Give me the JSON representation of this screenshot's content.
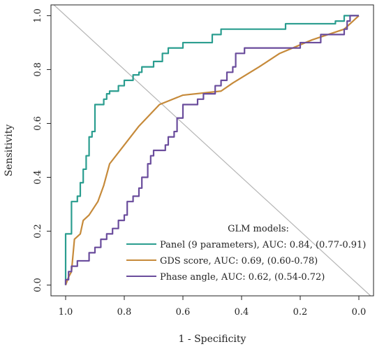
{
  "chart_data": {
    "type": "line",
    "xlabel": "1 - Specificity",
    "ylabel": "Sensitivity",
    "xlim": [
      1.05,
      -0.05
    ],
    "ylim": [
      -0.04,
      1.04
    ],
    "x_ticks": [
      1.0,
      0.8,
      0.6,
      0.4,
      0.2,
      0.0
    ],
    "x_tick_labels": [
      "1.0",
      "0.8",
      "0.6",
      "0.4",
      "0.2",
      "0.0"
    ],
    "y_ticks": [
      0.0,
      0.2,
      0.4,
      0.6,
      0.8,
      1.0
    ],
    "y_tick_labels": [
      "0.0",
      "0.2",
      "0.4",
      "0.6",
      "0.8",
      "1.0"
    ],
    "grid": false,
    "reference_line": true,
    "legend": {
      "title": "GLM models:",
      "placement": "bottom-right"
    },
    "series": [
      {
        "name": "Panel (9 parameters), AUC: 0.84, (0.77-0.91)",
        "color": "#2a9d8f",
        "points": [
          [
            1.0,
            0.0
          ],
          [
            1.0,
            0.19
          ],
          [
            0.98,
            0.19
          ],
          [
            0.98,
            0.31
          ],
          [
            0.96,
            0.31
          ],
          [
            0.96,
            0.33
          ],
          [
            0.95,
            0.33
          ],
          [
            0.95,
            0.38
          ],
          [
            0.94,
            0.38
          ],
          [
            0.94,
            0.43
          ],
          [
            0.93,
            0.43
          ],
          [
            0.93,
            0.48
          ],
          [
            0.92,
            0.48
          ],
          [
            0.92,
            0.55
          ],
          [
            0.91,
            0.55
          ],
          [
            0.91,
            0.57
          ],
          [
            0.9,
            0.57
          ],
          [
            0.9,
            0.67
          ],
          [
            0.87,
            0.67
          ],
          [
            0.87,
            0.69
          ],
          [
            0.86,
            0.69
          ],
          [
            0.86,
            0.71
          ],
          [
            0.85,
            0.71
          ],
          [
            0.85,
            0.72
          ],
          [
            0.82,
            0.72
          ],
          [
            0.82,
            0.74
          ],
          [
            0.8,
            0.74
          ],
          [
            0.8,
            0.76
          ],
          [
            0.77,
            0.76
          ],
          [
            0.77,
            0.78
          ],
          [
            0.75,
            0.78
          ],
          [
            0.75,
            0.79
          ],
          [
            0.74,
            0.79
          ],
          [
            0.74,
            0.81
          ],
          [
            0.7,
            0.81
          ],
          [
            0.7,
            0.83
          ],
          [
            0.67,
            0.83
          ],
          [
            0.67,
            0.86
          ],
          [
            0.65,
            0.86
          ],
          [
            0.65,
            0.88
          ],
          [
            0.6,
            0.88
          ],
          [
            0.6,
            0.9
          ],
          [
            0.5,
            0.9
          ],
          [
            0.5,
            0.93
          ],
          [
            0.47,
            0.93
          ],
          [
            0.47,
            0.95
          ],
          [
            0.25,
            0.95
          ],
          [
            0.25,
            0.97
          ],
          [
            0.08,
            0.97
          ],
          [
            0.08,
            0.98
          ],
          [
            0.05,
            0.98
          ],
          [
            0.05,
            1.0
          ],
          [
            0.0,
            1.0
          ]
        ]
      },
      {
        "name": "GDS score, AUC: 0.69, (0.60-0.78)",
        "color": "#c68a3a",
        "points": [
          [
            1.0,
            0.0
          ],
          [
            0.99,
            0.03
          ],
          [
            0.98,
            0.05
          ],
          [
            0.97,
            0.17
          ],
          [
            0.95,
            0.19
          ],
          [
            0.94,
            0.24
          ],
          [
            0.92,
            0.26
          ],
          [
            0.89,
            0.31
          ],
          [
            0.87,
            0.37
          ],
          [
            0.85,
            0.45
          ],
          [
            0.8,
            0.52
          ],
          [
            0.75,
            0.59
          ],
          [
            0.68,
            0.67
          ],
          [
            0.6,
            0.705
          ],
          [
            0.47,
            0.72
          ],
          [
            0.43,
            0.75
          ],
          [
            0.34,
            0.81
          ],
          [
            0.27,
            0.86
          ],
          [
            0.16,
            0.91
          ],
          [
            0.05,
            0.95
          ],
          [
            0.0,
            1.0
          ]
        ]
      },
      {
        "name": "Phase angle, AUC: 0.62, (0.54-0.72)",
        "color": "#6a4c9c",
        "points": [
          [
            1.0,
            0.0
          ],
          [
            1.0,
            0.02
          ],
          [
            0.99,
            0.02
          ],
          [
            0.99,
            0.05
          ],
          [
            0.98,
            0.05
          ],
          [
            0.98,
            0.07
          ],
          [
            0.96,
            0.07
          ],
          [
            0.96,
            0.09
          ],
          [
            0.92,
            0.09
          ],
          [
            0.92,
            0.12
          ],
          [
            0.9,
            0.12
          ],
          [
            0.9,
            0.14
          ],
          [
            0.88,
            0.14
          ],
          [
            0.88,
            0.17
          ],
          [
            0.86,
            0.17
          ],
          [
            0.86,
            0.19
          ],
          [
            0.84,
            0.19
          ],
          [
            0.84,
            0.21
          ],
          [
            0.82,
            0.21
          ],
          [
            0.82,
            0.24
          ],
          [
            0.8,
            0.24
          ],
          [
            0.8,
            0.26
          ],
          [
            0.79,
            0.26
          ],
          [
            0.79,
            0.31
          ],
          [
            0.77,
            0.31
          ],
          [
            0.77,
            0.33
          ],
          [
            0.75,
            0.33
          ],
          [
            0.75,
            0.36
          ],
          [
            0.74,
            0.36
          ],
          [
            0.74,
            0.4
          ],
          [
            0.72,
            0.4
          ],
          [
            0.72,
            0.45
          ],
          [
            0.71,
            0.45
          ],
          [
            0.71,
            0.48
          ],
          [
            0.7,
            0.48
          ],
          [
            0.7,
            0.5
          ],
          [
            0.66,
            0.5
          ],
          [
            0.66,
            0.52
          ],
          [
            0.65,
            0.52
          ],
          [
            0.65,
            0.55
          ],
          [
            0.63,
            0.55
          ],
          [
            0.63,
            0.57
          ],
          [
            0.62,
            0.57
          ],
          [
            0.62,
            0.62
          ],
          [
            0.6,
            0.62
          ],
          [
            0.6,
            0.67
          ],
          [
            0.55,
            0.67
          ],
          [
            0.55,
            0.69
          ],
          [
            0.53,
            0.69
          ],
          [
            0.53,
            0.71
          ],
          [
            0.49,
            0.71
          ],
          [
            0.49,
            0.74
          ],
          [
            0.47,
            0.74
          ],
          [
            0.47,
            0.76
          ],
          [
            0.45,
            0.76
          ],
          [
            0.45,
            0.79
          ],
          [
            0.43,
            0.79
          ],
          [
            0.43,
            0.81
          ],
          [
            0.42,
            0.81
          ],
          [
            0.42,
            0.86
          ],
          [
            0.39,
            0.86
          ],
          [
            0.39,
            0.88
          ],
          [
            0.2,
            0.88
          ],
          [
            0.2,
            0.9
          ],
          [
            0.13,
            0.9
          ],
          [
            0.13,
            0.93
          ],
          [
            0.05,
            0.93
          ],
          [
            0.05,
            0.95
          ],
          [
            0.04,
            0.95
          ],
          [
            0.04,
            0.98
          ],
          [
            0.03,
            0.98
          ],
          [
            0.03,
            1.0
          ],
          [
            0.0,
            1.0
          ]
        ]
      }
    ]
  }
}
